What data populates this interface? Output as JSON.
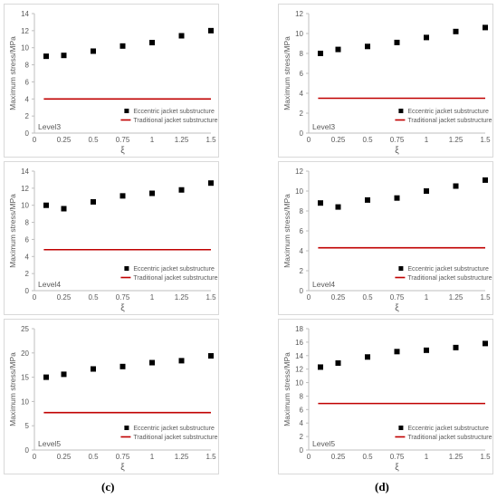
{
  "captions": {
    "left": "(c)",
    "right": "(d)"
  },
  "colors": {
    "marker": "#000000",
    "traditional_line": "#c00000",
    "axis": "#bfbfbf",
    "text": "#595959"
  },
  "chart_data": [
    {
      "id": "c-level3",
      "type": "scatter",
      "ylabel": "Maximum stress/MPa",
      "xlabel": "ξ",
      "level_label": "Level3",
      "ylim": [
        0,
        14
      ],
      "yticks": [
        0,
        2,
        4,
        6,
        8,
        10,
        12,
        14
      ],
      "xlim": [
        0,
        1.5
      ],
      "xticks": [
        "0",
        "0.25",
        "0.5",
        "0.75",
        "1",
        "1.25",
        "1.5"
      ],
      "series": [
        {
          "name": "Eccentric jacket substructure",
          "style": "marker",
          "x": [
            0.1,
            0.25,
            0.5,
            0.75,
            1.0,
            1.25,
            1.5
          ],
          "y": [
            9.0,
            9.1,
            9.6,
            10.2,
            10.6,
            11.4,
            12.0
          ]
        },
        {
          "name": "Traditional jacket substructure",
          "style": "line",
          "x": [
            0.08,
            1.5
          ],
          "y": [
            4.0,
            4.0
          ]
        }
      ]
    },
    {
      "id": "d-level3",
      "type": "scatter",
      "ylabel": "Maximum stress/MPa",
      "xlabel": "ξ",
      "level_label": "Level3",
      "ylim": [
        0,
        12
      ],
      "yticks": [
        0,
        2,
        4,
        6,
        8,
        10,
        12
      ],
      "xlim": [
        0,
        1.5
      ],
      "xticks": [
        "0",
        "0.25",
        "0.5",
        "0.75",
        "1",
        "1.25",
        "1.5"
      ],
      "series": [
        {
          "name": "Eccentric jacket substructure",
          "style": "marker",
          "x": [
            0.1,
            0.25,
            0.5,
            0.75,
            1.0,
            1.25,
            1.5
          ],
          "y": [
            8.0,
            8.4,
            8.7,
            9.1,
            9.6,
            10.2,
            10.6
          ]
        },
        {
          "name": "Traditional jacket substructure",
          "style": "line",
          "x": [
            0.08,
            1.5
          ],
          "y": [
            3.5,
            3.5
          ]
        }
      ]
    },
    {
      "id": "c-level4",
      "type": "scatter",
      "ylabel": "Maximum stress/MPa",
      "xlabel": "ξ",
      "level_label": "Level4",
      "ylim": [
        0,
        14
      ],
      "yticks": [
        0,
        2,
        4,
        6,
        8,
        10,
        12,
        14
      ],
      "xlim": [
        0,
        1.5
      ],
      "xticks": [
        "0",
        "0.25",
        "0.5",
        "0.75",
        "1",
        "1.25",
        "1.5"
      ],
      "series": [
        {
          "name": "Eccentric jacket substructure",
          "style": "marker",
          "x": [
            0.1,
            0.25,
            0.5,
            0.75,
            1.0,
            1.25,
            1.5
          ],
          "y": [
            10.0,
            9.6,
            10.4,
            11.1,
            11.4,
            11.8,
            12.6
          ]
        },
        {
          "name": "Traditional jacket substructure",
          "style": "line",
          "x": [
            0.08,
            1.5
          ],
          "y": [
            4.8,
            4.8
          ]
        }
      ]
    },
    {
      "id": "d-level4",
      "type": "scatter",
      "ylabel": "Maximum stress/MPa",
      "xlabel": "ξ",
      "level_label": "Level4",
      "ylim": [
        0,
        12
      ],
      "yticks": [
        0,
        2,
        4,
        6,
        8,
        10,
        12
      ],
      "xlim": [
        0,
        1.5
      ],
      "xticks": [
        "0",
        "0.25",
        "0.5",
        "0.75",
        "1",
        "1.25",
        "1.5"
      ],
      "series": [
        {
          "name": "Eccentric jacket substructure",
          "style": "marker",
          "x": [
            0.1,
            0.25,
            0.5,
            0.75,
            1.0,
            1.25,
            1.5
          ],
          "y": [
            8.8,
            8.4,
            9.1,
            9.3,
            10.0,
            10.5,
            11.1
          ]
        },
        {
          "name": "Traditional jacket substructure",
          "style": "line",
          "x": [
            0.08,
            1.5
          ],
          "y": [
            4.3,
            4.3
          ]
        }
      ]
    },
    {
      "id": "c-level5",
      "type": "scatter",
      "ylabel": "Maximum stress/MPa",
      "xlabel": "ξ",
      "level_label": "Level5",
      "ylim": [
        0,
        25
      ],
      "yticks": [
        0,
        5,
        10,
        15,
        20,
        25
      ],
      "xlim": [
        0,
        1.5
      ],
      "xticks": [
        "0",
        "0.25",
        "0.5",
        "0.75",
        "1",
        "1.25",
        "1.5"
      ],
      "series": [
        {
          "name": "Eccentric jacket substructure",
          "style": "marker",
          "x": [
            0.1,
            0.25,
            0.5,
            0.75,
            1.0,
            1.25,
            1.5
          ],
          "y": [
            15.0,
            15.6,
            16.7,
            17.2,
            18.0,
            18.4,
            19.4
          ]
        },
        {
          "name": "Traditional jacket substructure",
          "style": "line",
          "x": [
            0.08,
            1.5
          ],
          "y": [
            7.7,
            7.7
          ]
        }
      ]
    },
    {
      "id": "d-level5",
      "type": "scatter",
      "ylabel": "Maximum stress/MPa",
      "xlabel": "ξ",
      "level_label": "Level5",
      "ylim": [
        0,
        18
      ],
      "yticks": [
        0,
        2,
        4,
        6,
        8,
        10,
        12,
        14,
        16,
        18
      ],
      "xlim": [
        0,
        1.5
      ],
      "xticks": [
        "0",
        "0.25",
        "0.5",
        "0.75",
        "1",
        "1.25",
        "1.5"
      ],
      "series": [
        {
          "name": "Eccentric jacket substructure",
          "style": "marker",
          "x": [
            0.1,
            0.25,
            0.5,
            0.75,
            1.0,
            1.25,
            1.5
          ],
          "y": [
            12.3,
            12.9,
            13.8,
            14.6,
            14.8,
            15.2,
            15.8
          ]
        },
        {
          "name": "Traditional jacket substructure",
          "style": "line",
          "x": [
            0.08,
            1.5
          ],
          "y": [
            6.9,
            6.9
          ]
        }
      ]
    }
  ]
}
